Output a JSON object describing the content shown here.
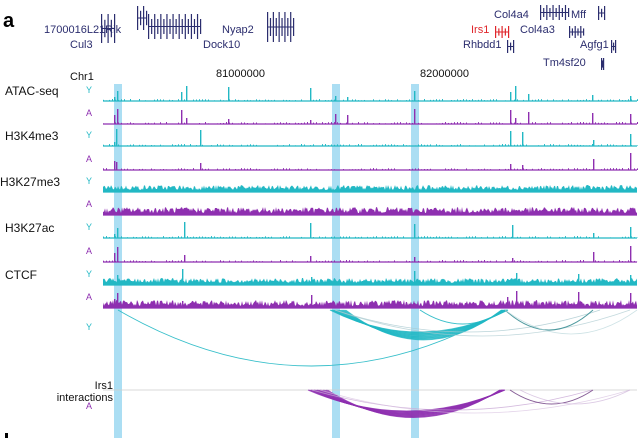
{
  "figure": {
    "panel_letter": "a",
    "chromosome": "Chr1",
    "coordinates": [
      "81000000",
      "82000000"
    ],
    "colors": {
      "replicate_y": "#22b8c4",
      "replicate_a": "#8e2fb0",
      "gene": "#2b2d6e",
      "highlight_gene": "#e0262b",
      "highlight_band": "#8fd3ef"
    }
  },
  "genes": [
    {
      "name": "1700016L21Rik",
      "highlight": false
    },
    {
      "name": "Cul3",
      "highlight": false
    },
    {
      "name": "Nyap2",
      "highlight": false
    },
    {
      "name": "Dock10",
      "highlight": false
    },
    {
      "name": "Col4a4",
      "highlight": false
    },
    {
      "name": "Mff",
      "highlight": false
    },
    {
      "name": "Irs1",
      "highlight": true
    },
    {
      "name": "Col4a3",
      "highlight": false
    },
    {
      "name": "Rhbdd1",
      "highlight": false
    },
    {
      "name": "Agfg1",
      "highlight": false
    },
    {
      "name": "Tm4sf20",
      "highlight": false
    }
  ],
  "tracks": [
    {
      "name": "ATAC-seq",
      "rows": [
        {
          "rep": "Y"
        },
        {
          "rep": "A"
        }
      ]
    },
    {
      "name": "H3K4me3",
      "rows": [
        {
          "rep": "Y"
        },
        {
          "rep": "A"
        }
      ]
    },
    {
      "name": "H3K27me3",
      "rows": [
        {
          "rep": "Y"
        },
        {
          "rep": "A"
        }
      ]
    },
    {
      "name": "H3K27ac",
      "rows": [
        {
          "rep": "Y"
        },
        {
          "rep": "A"
        }
      ]
    },
    {
      "name": "CTCF",
      "rows": [
        {
          "rep": "Y"
        },
        {
          "rep": "A"
        }
      ]
    }
  ],
  "interactions": {
    "label_line1": "Irs1",
    "label_line2": "interactions",
    "rows": [
      "Y",
      "A"
    ]
  }
}
